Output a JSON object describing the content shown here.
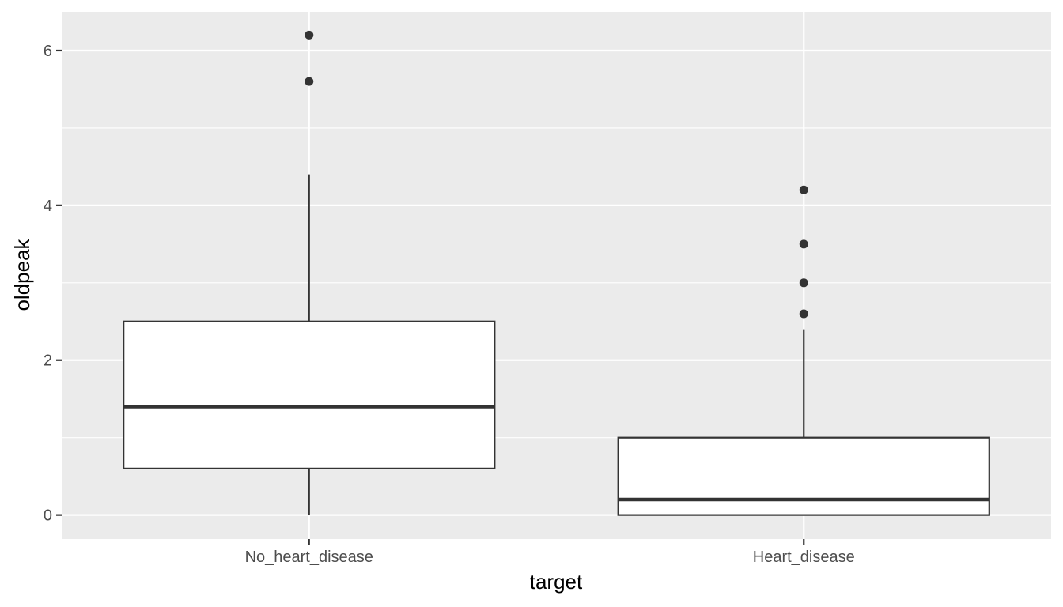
{
  "chart_data": {
    "type": "boxplot",
    "xlabel": "target",
    "ylabel": "oldpeak",
    "categories": [
      "No_heart_disease",
      "Heart_disease"
    ],
    "ylim": [
      -0.31,
      6.5
    ],
    "yticks": [
      0,
      2,
      4,
      6
    ],
    "y_minor_ticks": [
      1,
      3,
      5
    ],
    "grid": true,
    "series": [
      {
        "category": "No_heart_disease",
        "whisker_low": 0,
        "q1": 0.6,
        "median": 1.4,
        "q3": 2.5,
        "whisker_high": 4.4,
        "outliers": [
          5.6,
          6.2
        ]
      },
      {
        "category": "Heart_disease",
        "whisker_low": 0,
        "q1": 0,
        "median": 0.2,
        "q3": 1.0,
        "whisker_high": 2.4,
        "outliers": [
          2.6,
          3.0,
          3.5,
          4.2
        ]
      }
    ],
    "colors": {
      "panel_background": "#ebebeb",
      "grid": "#ffffff",
      "box_fill": "#ffffff",
      "box_line": "#333333",
      "outlier": "#333333"
    }
  }
}
